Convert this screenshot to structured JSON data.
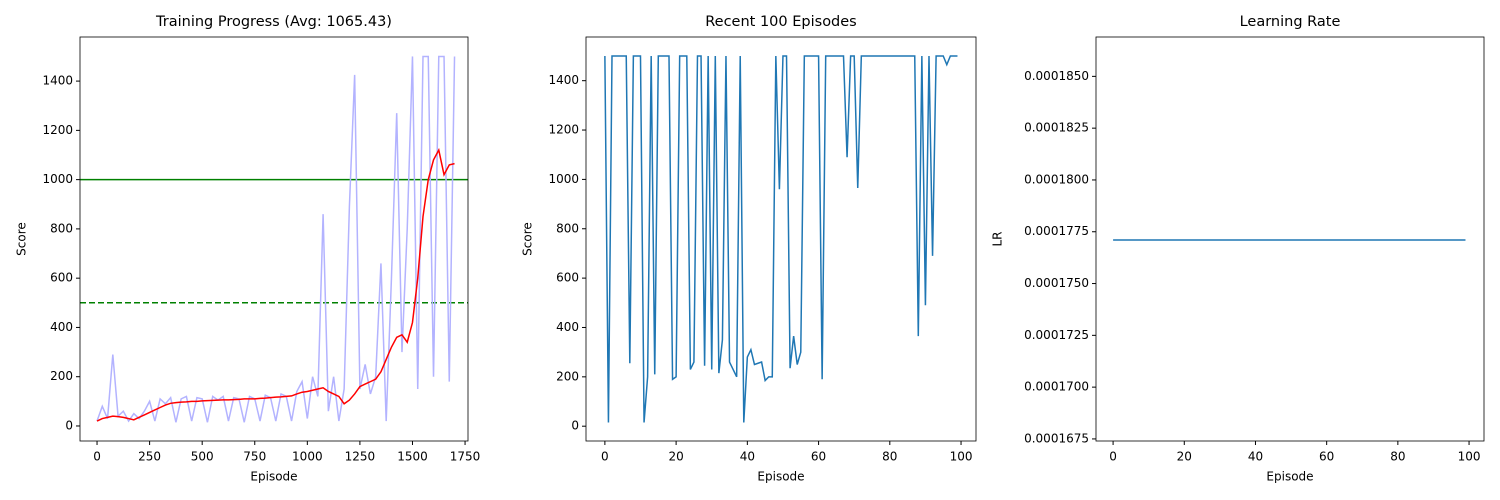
{
  "chart_data": [
    {
      "type": "line",
      "title": "Training Progress (Avg: 1065.43)",
      "xlabel": "Episode",
      "ylabel": "Score",
      "xlim": [
        -81,
        1764
      ],
      "ylim": [
        -61,
        1579
      ],
      "xticks": [
        0,
        250,
        500,
        750,
        1000,
        1250,
        1500,
        1750
      ],
      "yticks": [
        0,
        200,
        400,
        600,
        800,
        1000,
        1200,
        1400
      ],
      "x": [
        0,
        25,
        50,
        75,
        100,
        125,
        150,
        175,
        200,
        225,
        250,
        275,
        300,
        325,
        350,
        375,
        400,
        425,
        450,
        475,
        500,
        525,
        550,
        575,
        600,
        625,
        650,
        675,
        700,
        725,
        750,
        775,
        800,
        825,
        850,
        875,
        900,
        925,
        950,
        975,
        1000,
        1025,
        1050,
        1075,
        1100,
        1125,
        1150,
        1175,
        1200,
        1225,
        1250,
        1275,
        1300,
        1325,
        1350,
        1375,
        1400,
        1425,
        1450,
        1475,
        1500,
        1525,
        1550,
        1575,
        1600,
        1625,
        1650,
        1675,
        1700
      ],
      "series": [
        {
          "color": "#b3b3ff",
          "values": [
            20,
            80,
            30,
            290,
            40,
            60,
            20,
            50,
            30,
            60,
            100,
            20,
            110,
            90,
            115,
            15,
            110,
            120,
            20,
            115,
            110,
            15,
            120,
            105,
            120,
            20,
            115,
            110,
            15,
            120,
            110,
            20,
            125,
            115,
            20,
            130,
            120,
            20,
            140,
            180,
            30,
            200,
            120,
            860,
            60,
            200,
            20,
            150,
            890,
            1425,
            150,
            250,
            130,
            200,
            660,
            20,
            600,
            1270,
            300,
            800,
            1500,
            150,
            1500,
            1500,
            200,
            1500,
            1500,
            180,
            1500
          ]
        },
        {
          "color": "#ff0000",
          "values": [
            20,
            30,
            35,
            40,
            38,
            35,
            30,
            25,
            35,
            45,
            55,
            65,
            75,
            85,
            92,
            95,
            97,
            98,
            100,
            100,
            102,
            103,
            104,
            105,
            106,
            106,
            107,
            108,
            110,
            110,
            110,
            112,
            113,
            115,
            117,
            118,
            120,
            122,
            130,
            137,
            140,
            145,
            150,
            155,
            140,
            130,
            120,
            90,
            105,
            130,
            160,
            170,
            180,
            190,
            220,
            270,
            320,
            360,
            370,
            340,
            420,
            600,
            850,
            1000,
            1080,
            1120,
            1020,
            1060,
            1065
          ]
        }
      ],
      "hlines": [
        {
          "value": 1000,
          "color": "#008000",
          "dash": false
        },
        {
          "value": 500,
          "color": "#008000",
          "dash": true
        }
      ]
    },
    {
      "type": "line",
      "title": "Recent 100 Episodes",
      "xlabel": "Episode",
      "ylabel": "Score",
      "xlim": [
        -5.3,
        104.2
      ],
      "ylim": [
        -60,
        1577
      ],
      "xticks": [
        0,
        20,
        40,
        60,
        80,
        100
      ],
      "yticks": [
        0,
        200,
        400,
        600,
        800,
        1000,
        1200,
        1400
      ],
      "x": [
        0,
        1,
        2,
        3,
        4,
        5,
        6,
        7,
        8,
        9,
        10,
        11,
        12,
        13,
        14,
        15,
        16,
        17,
        18,
        19,
        20,
        21,
        22,
        23,
        24,
        25,
        26,
        27,
        28,
        29,
        30,
        31,
        32,
        33,
        34,
        35,
        36,
        37,
        38,
        39,
        40,
        41,
        42,
        43,
        44,
        45,
        46,
        47,
        48,
        49,
        50,
        51,
        52,
        53,
        54,
        55,
        56,
        57,
        58,
        59,
        60,
        61,
        62,
        63,
        64,
        65,
        66,
        67,
        68,
        69,
        70,
        71,
        72,
        73,
        74,
        75,
        76,
        77,
        78,
        79,
        80,
        81,
        82,
        83,
        84,
        85,
        86,
        87,
        88,
        89,
        90,
        91,
        92,
        93,
        94,
        95,
        96,
        97,
        98,
        99
      ],
      "series": [
        {
          "color": "#1f77b4",
          "values": [
            1500,
            15,
            1500,
            1500,
            1500,
            1500,
            1500,
            255,
            1500,
            1500,
            1500,
            15,
            200,
            1500,
            210,
            1500,
            1500,
            1500,
            1500,
            190,
            200,
            1500,
            1500,
            1500,
            230,
            260,
            1500,
            1500,
            245,
            1500,
            230,
            1500,
            215,
            350,
            1500,
            260,
            230,
            200,
            1500,
            15,
            280,
            310,
            250,
            255,
            260,
            185,
            200,
            200,
            1500,
            960,
            1500,
            1500,
            235,
            365,
            250,
            300,
            1500,
            1500,
            1500,
            1500,
            1500,
            190,
            1500,
            1500,
            1500,
            1500,
            1500,
            1500,
            1090,
            1500,
            1500,
            965,
            1500,
            1500,
            1500,
            1500,
            1500,
            1500,
            1500,
            1500,
            1500,
            1500,
            1500,
            1500,
            1500,
            1500,
            1500,
            1500,
            365,
            1500,
            490,
            1500,
            690,
            1500,
            1500,
            1500,
            1465,
            1500,
            1500,
            1500
          ]
        }
      ]
    },
    {
      "type": "line",
      "title": "Learning Rate",
      "xlabel": "Episode",
      "ylabel": "LR",
      "xlim": [
        -4.8,
        104.2
      ],
      "ylim": [
        0.0001674,
        0.0001869
      ],
      "xticks": [
        0,
        20,
        40,
        60,
        80,
        100
      ],
      "yticks": [
        {
          "value": 0.0001675,
          "label": "0.0001675"
        },
        {
          "value": 0.00017,
          "label": "0.0001700"
        },
        {
          "value": 0.0001725,
          "label": "0.0001725"
        },
        {
          "value": 0.000175,
          "label": "0.0001750"
        },
        {
          "value": 0.0001775,
          "label": "0.0001775"
        },
        {
          "value": 0.00018,
          "label": "0.0001800"
        },
        {
          "value": 0.0001825,
          "label": "0.0001825"
        },
        {
          "value": 0.000185,
          "label": "0.0001850"
        }
      ],
      "x": [
        0,
        1,
        2,
        3,
        4,
        5,
        6,
        7,
        8,
        9,
        10,
        11,
        12,
        13,
        14,
        15,
        16,
        17,
        18,
        19,
        20,
        21,
        22,
        23,
        24,
        25,
        26,
        27,
        28,
        29,
        30,
        31,
        32,
        33,
        34,
        35,
        36,
        37,
        38,
        39,
        40,
        41,
        42,
        43,
        44,
        45,
        46,
        47,
        48,
        49,
        50,
        51,
        52,
        53,
        54,
        55,
        56,
        57,
        58,
        59,
        60,
        61,
        62,
        63,
        64,
        65,
        66,
        67,
        68,
        69,
        70,
        71,
        72,
        73,
        74,
        75,
        76,
        77,
        78,
        79,
        80,
        81,
        82,
        83,
        84,
        85,
        86,
        87,
        88,
        89,
        90,
        91,
        92,
        93,
        94,
        95,
        96,
        97,
        98,
        99
      ],
      "series": [
        {
          "color": "#1f77b4",
          "values": [
            0.0001771,
            0.0001771,
            0.0001771,
            0.0001771,
            0.0001771,
            0.0001771,
            0.0001771,
            0.0001771,
            0.0001771,
            0.0001771,
            0.0001771,
            0.0001771,
            0.0001771,
            0.0001771,
            0.0001771,
            0.0001771,
            0.0001771,
            0.0001771,
            0.0001771,
            0.0001771,
            0.0001771,
            0.0001771,
            0.0001771,
            0.0001771,
            0.0001771,
            0.0001771,
            0.0001771,
            0.0001771,
            0.0001771,
            0.0001771,
            0.0001771,
            0.0001771,
            0.0001771,
            0.0001771,
            0.0001771,
            0.0001771,
            0.0001771,
            0.0001771,
            0.0001771,
            0.0001771,
            0.0001771,
            0.0001771,
            0.0001771,
            0.0001771,
            0.0001771,
            0.0001771,
            0.0001771,
            0.0001771,
            0.0001771,
            0.0001771,
            0.0001771,
            0.0001771,
            0.0001771,
            0.0001771,
            0.0001771,
            0.0001771,
            0.0001771,
            0.0001771,
            0.0001771,
            0.0001771,
            0.0001771,
            0.0001771,
            0.0001771,
            0.0001771,
            0.0001771,
            0.0001771,
            0.0001771,
            0.0001771,
            0.0001771,
            0.0001771,
            0.0001771,
            0.0001771,
            0.0001771,
            0.0001771,
            0.0001771,
            0.0001771,
            0.0001771,
            0.0001771,
            0.0001771,
            0.0001771,
            0.0001771,
            0.0001771,
            0.0001771,
            0.0001771,
            0.0001771,
            0.0001771,
            0.0001771,
            0.0001771,
            0.0001771,
            0.0001771,
            0.0001771,
            0.0001771,
            0.0001771,
            0.0001771,
            0.0001771,
            0.0001771,
            0.0001771,
            0.0001771,
            0.0001771,
            0.0001771
          ]
        }
      ]
    }
  ]
}
